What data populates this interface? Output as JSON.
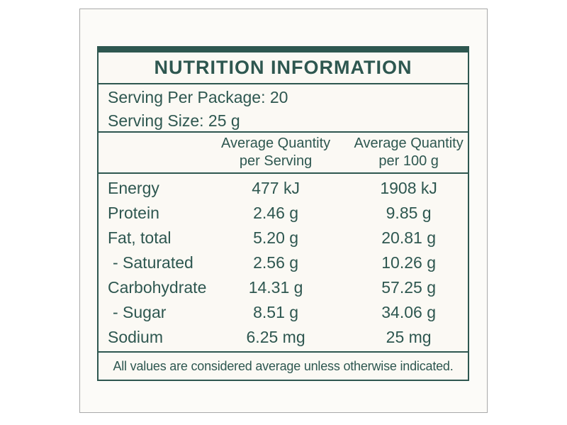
{
  "colors": {
    "accent": "#2e5750",
    "card_border": "#a9a9a9",
    "label_background": "#fbf9f4",
    "card_background": "#fcfbf8",
    "page_background": "#ffffff"
  },
  "label": {
    "title": "NUTRITION INFORMATION",
    "serving_per_package": "Serving Per Package: 20",
    "serving_size": "Serving Size: 25 g",
    "table": {
      "columns": [
        {
          "line1": "Average Quantity",
          "line2": "per Serving"
        },
        {
          "line1": "Average Quantity",
          "line2": "per 100 g"
        }
      ],
      "rows": [
        {
          "name": "Energy",
          "per_serving": "477 kJ",
          "per_100g": "1908 kJ"
        },
        {
          "name": "Protein",
          "per_serving": "2.46 g",
          "per_100g": "9.85 g"
        },
        {
          "name": "Fat, total",
          "per_serving": "5.20 g",
          "per_100g": "20.81 g"
        },
        {
          "name": "- Saturated",
          "per_serving": "2.56 g",
          "per_100g": "10.26 g"
        },
        {
          "name": "Carbohydrate",
          "per_serving": "14.31 g",
          "per_100g": "57.25 g"
        },
        {
          "name": "- Sugar",
          "per_serving": "8.51 g",
          "per_100g": "34.06 g"
        },
        {
          "name": "Sodium",
          "per_serving": "6.25 mg",
          "per_100g": "25 mg"
        }
      ]
    },
    "footnote": "All values are considered average unless otherwise indicated."
  }
}
